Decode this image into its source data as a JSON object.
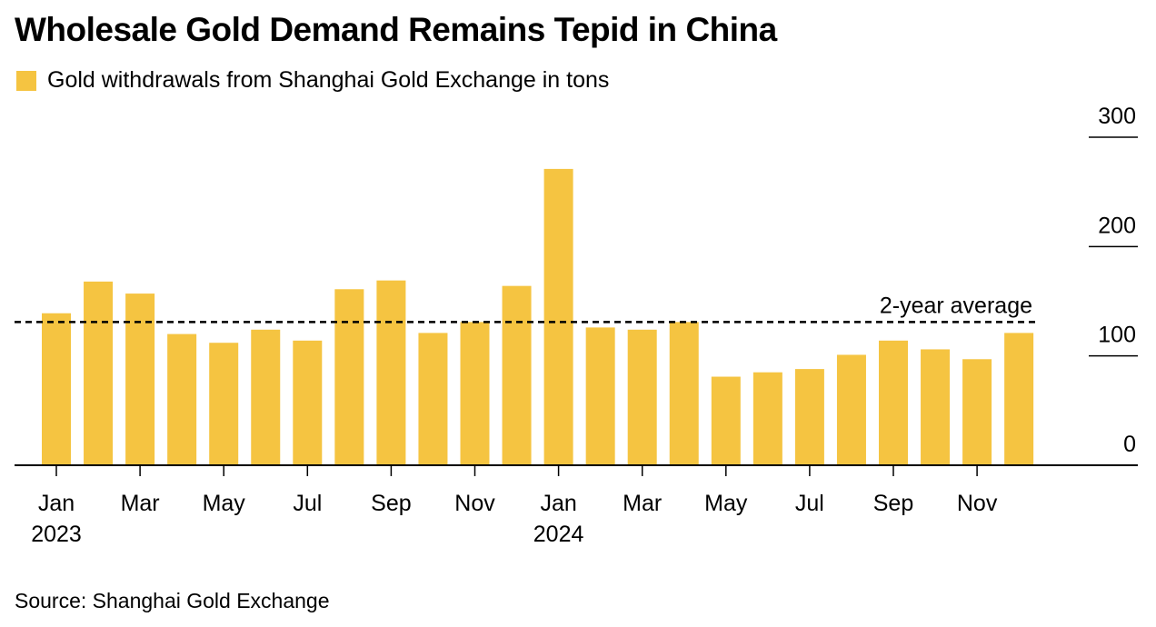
{
  "title": "Wholesale Gold Demand Remains Tepid in China",
  "source": "Source: Shanghai Gold Exchange",
  "colors": {
    "bar": "#F5C441",
    "text": "#000000"
  },
  "chart_data": {
    "type": "bar",
    "legend": [
      {
        "label": "Gold withdrawals from Shanghai Gold Exchange in tons",
        "color": "#F5C441"
      }
    ],
    "categories": [
      "Jan 2023",
      "Feb 2023",
      "Mar 2023",
      "Apr 2023",
      "May 2023",
      "Jun 2023",
      "Jul 2023",
      "Aug 2023",
      "Sep 2023",
      "Oct 2023",
      "Nov 2023",
      "Dec 2023",
      "Jan 2024",
      "Feb 2024",
      "Mar 2024",
      "Apr 2024",
      "May 2024",
      "Jun 2024",
      "Jul 2024",
      "Aug 2024",
      "Sep 2024",
      "Oct 2024",
      "Nov 2024",
      "Dec 2024"
    ],
    "series": [
      {
        "name": "Gold withdrawals from Shanghai Gold Exchange in tons",
        "values": [
          139,
          168,
          157,
          120,
          112,
          124,
          114,
          161,
          169,
          121,
          131,
          164,
          271,
          126,
          124,
          131,
          81,
          85,
          88,
          101,
          114,
          106,
          97,
          121
        ]
      }
    ],
    "ylim": [
      0,
      300
    ],
    "yticks": [
      0,
      100,
      200,
      300
    ],
    "xticks": [
      {
        "index": 0,
        "month": "Jan",
        "year": "2023"
      },
      {
        "index": 2,
        "month": "Mar",
        "year": ""
      },
      {
        "index": 4,
        "month": "May",
        "year": ""
      },
      {
        "index": 6,
        "month": "Jul",
        "year": ""
      },
      {
        "index": 8,
        "month": "Sep",
        "year": ""
      },
      {
        "index": 10,
        "month": "Nov",
        "year": ""
      },
      {
        "index": 12,
        "month": "Jan",
        "year": "2024"
      },
      {
        "index": 14,
        "month": "Mar",
        "year": ""
      },
      {
        "index": 16,
        "month": "May",
        "year": ""
      },
      {
        "index": 18,
        "month": "Jul",
        "year": ""
      },
      {
        "index": 20,
        "month": "Sep",
        "year": ""
      },
      {
        "index": 22,
        "month": "Nov",
        "year": ""
      }
    ],
    "reference_line": {
      "label": "2-year average",
      "value": 131,
      "style": "dashed"
    },
    "grid": false
  }
}
